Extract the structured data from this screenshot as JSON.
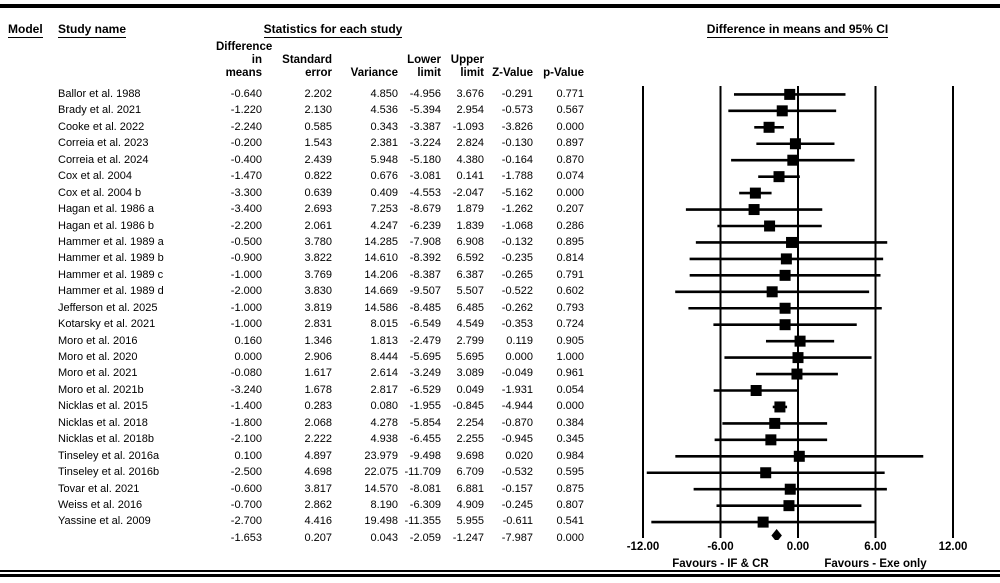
{
  "header": {
    "model_label": "Model",
    "study_name_label": "Study name",
    "stats_title": "Statistics for each study",
    "plot_title": "Difference in means and 95% CI"
  },
  "table": {
    "columns": [
      "Difference\nin means",
      "Standard\nerror",
      "Variance",
      "Lower\nlimit",
      "Upper\nlimit",
      "Z-Value",
      "p-Value"
    ]
  },
  "chart_data": {
    "type": "forest",
    "title": "Difference in means and 95% CI",
    "xlim": [
      -12,
      12
    ],
    "tick_labels": [
      "-12.00",
      "-6.00",
      "0.00",
      "6.00",
      "12.00"
    ],
    "favours_left": "Favours - IF & CR",
    "favours_right": "Favours - Exe only",
    "marker_color": "#000000",
    "studies": [
      {
        "name": "Ballor et al. 1988",
        "cells": [
          "-0.640",
          "2.202",
          "4.850",
          "-4.956",
          "3.676",
          "-0.291",
          "0.771"
        ]
      },
      {
        "name": "Brady et al. 2021",
        "cells": [
          "-1.220",
          "2.130",
          "4.536",
          "-5.394",
          "2.954",
          "-0.573",
          "0.567"
        ]
      },
      {
        "name": "Cooke et al. 2022",
        "cells": [
          "-2.240",
          "0.585",
          "0.343",
          "-3.387",
          "-1.093",
          "-3.826",
          "0.000"
        ]
      },
      {
        "name": "Correia et al. 2023",
        "cells": [
          "-0.200",
          "1.543",
          "2.381",
          "-3.224",
          "2.824",
          "-0.130",
          "0.897"
        ]
      },
      {
        "name": "Correia et al. 2024",
        "cells": [
          "-0.400",
          "2.439",
          "5.948",
          "-5.180",
          "4.380",
          "-0.164",
          "0.870"
        ]
      },
      {
        "name": "Cox et al. 2004",
        "cells": [
          "-1.470",
          "0.822",
          "0.676",
          "-3.081",
          "0.141",
          "-1.788",
          "0.074"
        ]
      },
      {
        "name": "Cox et al. 2004 b",
        "cells": [
          "-3.300",
          "0.639",
          "0.409",
          "-4.553",
          "-2.047",
          "-5.162",
          "0.000"
        ]
      },
      {
        "name": "Hagan et al. 1986 a",
        "cells": [
          "-3.400",
          "2.693",
          "7.253",
          "-8.679",
          "1.879",
          "-1.262",
          "0.207"
        ]
      },
      {
        "name": "Hagan et al. 1986 b",
        "cells": [
          "-2.200",
          "2.061",
          "4.247",
          "-6.239",
          "1.839",
          "-1.068",
          "0.286"
        ]
      },
      {
        "name": "Hammer et al. 1989 a",
        "cells": [
          "-0.500",
          "3.780",
          "14.285",
          "-7.908",
          "6.908",
          "-0.132",
          "0.895"
        ]
      },
      {
        "name": "Hammer et al. 1989 b",
        "cells": [
          "-0.900",
          "3.822",
          "14.610",
          "-8.392",
          "6.592",
          "-0.235",
          "0.814"
        ]
      },
      {
        "name": "Hammer et al. 1989 c",
        "cells": [
          "-1.000",
          "3.769",
          "14.206",
          "-8.387",
          "6.387",
          "-0.265",
          "0.791"
        ]
      },
      {
        "name": "Hammer et al. 1989 d",
        "cells": [
          "-2.000",
          "3.830",
          "14.669",
          "-9.507",
          "5.507",
          "-0.522",
          "0.602"
        ]
      },
      {
        "name": "Jefferson et al. 2025",
        "cells": [
          "-1.000",
          "3.819",
          "14.586",
          "-8.485",
          "6.485",
          "-0.262",
          "0.793"
        ]
      },
      {
        "name": "Kotarsky et al. 2021",
        "cells": [
          "-1.000",
          "2.831",
          "8.015",
          "-6.549",
          "4.549",
          "-0.353",
          "0.724"
        ]
      },
      {
        "name": "Moro et al. 2016",
        "cells": [
          "0.160",
          "1.346",
          "1.813",
          "-2.479",
          "2.799",
          "0.119",
          "0.905"
        ]
      },
      {
        "name": "Moro et al. 2020",
        "cells": [
          "0.000",
          "2.906",
          "8.444",
          "-5.695",
          "5.695",
          "0.000",
          "1.000"
        ]
      },
      {
        "name": "Moro et al. 2021",
        "cells": [
          "-0.080",
          "1.617",
          "2.614",
          "-3.249",
          "3.089",
          "-0.049",
          "0.961"
        ]
      },
      {
        "name": "Moro et al. 2021b",
        "cells": [
          "-3.240",
          "1.678",
          "2.817",
          "-6.529",
          "0.049",
          "-1.931",
          "0.054"
        ]
      },
      {
        "name": "Nicklas et al. 2015",
        "cells": [
          "-1.400",
          "0.283",
          "0.080",
          "-1.955",
          "-0.845",
          "-4.944",
          "0.000"
        ]
      },
      {
        "name": "Nicklas et al. 2018",
        "cells": [
          "-1.800",
          "2.068",
          "4.278",
          "-5.854",
          "2.254",
          "-0.870",
          "0.384"
        ]
      },
      {
        "name": "Nicklas et al. 2018b",
        "cells": [
          "-2.100",
          "2.222",
          "4.938",
          "-6.455",
          "2.255",
          "-0.945",
          "0.345"
        ]
      },
      {
        "name": "Tinseley et al. 2016a",
        "cells": [
          "0.100",
          "4.897",
          "23.979",
          "-9.498",
          "9.698",
          "0.020",
          "0.984"
        ]
      },
      {
        "name": "Tinseley et al. 2016b",
        "cells": [
          "-2.500",
          "4.698",
          "22.075",
          "-11.709",
          "6.709",
          "-0.532",
          "0.595"
        ]
      },
      {
        "name": "Tovar et al. 2021",
        "cells": [
          "-0.600",
          "3.817",
          "14.570",
          "-8.081",
          "6.881",
          "-0.157",
          "0.875"
        ]
      },
      {
        "name": "Weiss et al. 2016",
        "cells": [
          "-0.700",
          "2.862",
          "8.190",
          "-6.309",
          "4.909",
          "-0.245",
          "0.807"
        ]
      },
      {
        "name": "Yassine et al. 2009",
        "cells": [
          "-2.700",
          "4.416",
          "19.498",
          "-11.355",
          "5.955",
          "-0.611",
          "0.541"
        ]
      }
    ],
    "summary": {
      "name": "",
      "cells": [
        "-1.653",
        "0.207",
        "0.043",
        "-2.059",
        "-1.247",
        "-7.987",
        "0.000"
      ]
    }
  }
}
